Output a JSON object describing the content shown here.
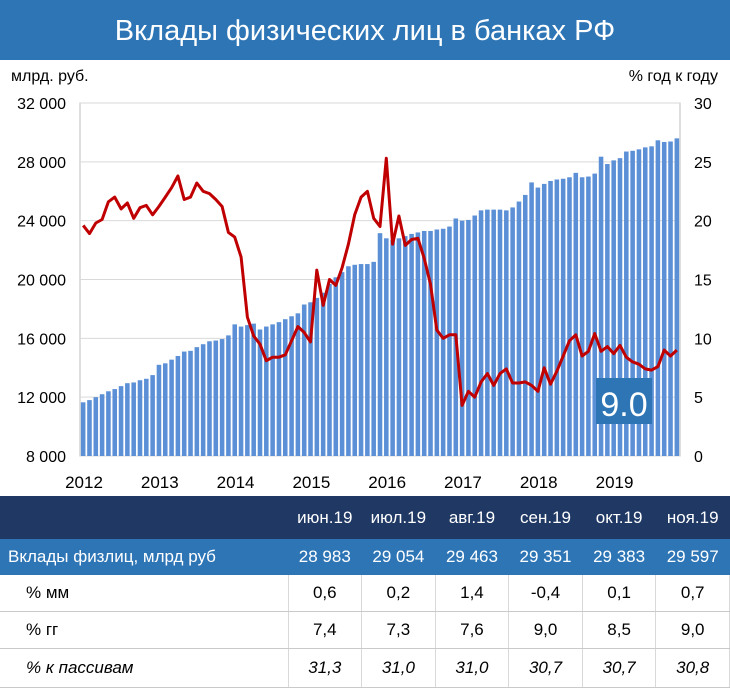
{
  "title": "Вклады физических лиц в банках РФ",
  "chart_data": {
    "type": "bar+line",
    "left_axis": {
      "label": "млрд. руб.",
      "min": 8000,
      "max": 32000,
      "ticks": [
        "8 000",
        "12 000",
        "16 000",
        "20 000",
        "24 000",
        "28 000",
        "32 000"
      ]
    },
    "right_axis": {
      "label": "% год к году",
      "min": 0,
      "max": 30,
      "ticks": [
        "0",
        "5",
        "10",
        "15",
        "20",
        "25",
        "30"
      ]
    },
    "x_ticks": [
      "2012",
      "2013",
      "2014",
      "2015",
      "2016",
      "2017",
      "2018",
      "2019"
    ],
    "x_start": "2012-01",
    "series": [
      {
        "kind": "bar",
        "color": "#5b8fd6",
        "values": [
          11650,
          11800,
          12000,
          12200,
          12400,
          12550,
          12750,
          12950,
          13000,
          13150,
          13250,
          13500,
          14200,
          14300,
          14550,
          14800,
          15100,
          15150,
          15400,
          15600,
          15800,
          15850,
          15950,
          16200,
          16950,
          16800,
          16900,
          17000,
          16600,
          16800,
          16950,
          17100,
          17300,
          17500,
          17700,
          18300,
          18450,
          18750,
          19100,
          19700,
          20150,
          20500,
          20900,
          21000,
          21050,
          21050,
          21200,
          23150,
          22800,
          22700,
          22800,
          22950,
          23100,
          23200,
          23300,
          23300,
          23400,
          23450,
          23600,
          24150,
          24000,
          24050,
          24350,
          24700,
          24750,
          24750,
          24750,
          24700,
          24900,
          25300,
          25750,
          26600,
          26250,
          26500,
          26700,
          26800,
          26850,
          26950,
          27250,
          26950,
          27000,
          27200,
          28350,
          27850,
          28100,
          28250,
          28700,
          28750,
          28850,
          28983,
          29054,
          29463,
          29351,
          29383,
          29597
        ]
      },
      {
        "kind": "line",
        "color": "#c00000",
        "values": [
          19.6,
          18.9,
          19.8,
          20.1,
          21.6,
          22.0,
          21.0,
          21.5,
          20.2,
          21.1,
          21.3,
          20.5,
          21.2,
          22.0,
          22.8,
          23.8,
          21.8,
          22.0,
          23.2,
          22.5,
          22.3,
          21.8,
          21.2,
          19.0,
          18.6,
          16.9,
          11.8,
          10.2,
          9.5,
          8.1,
          8.4,
          8.4,
          8.6,
          9.8,
          11.0,
          10.5,
          9.7,
          15.8,
          12.8,
          15.0,
          14.5,
          16.0,
          18.0,
          20.5,
          22.0,
          22.5,
          20.2,
          19.5,
          25.3,
          18.0,
          20.4,
          17.9,
          18.4,
          18.5,
          16.8,
          14.6,
          10.7,
          10.0,
          10.3,
          10.3,
          4.3,
          5.5,
          5.0,
          6.3,
          7.0,
          6.0,
          7.0,
          7.4,
          6.2,
          6.2,
          6.3,
          6.0,
          5.5,
          7.5,
          6.1,
          7.2,
          8.5,
          9.8,
          10.3,
          8.5,
          8.9,
          10.4,
          8.9,
          9.3,
          8.7,
          9.4,
          8.4,
          8.0,
          7.8,
          7.4,
          7.3,
          7.6,
          9.0,
          8.5,
          9.0
        ]
      }
    ],
    "annotation": "9.0"
  },
  "table": {
    "columns": [
      "июн.19",
      "июл.19",
      "авг.19",
      "сен.19",
      "окт.19",
      "ноя.19"
    ],
    "rows": [
      {
        "label": "Вклады физлиц, млрд руб",
        "values": [
          "28 983",
          "29 054",
          "29 463",
          "29 351",
          "29 383",
          "29 597"
        ]
      },
      {
        "label": "% мм",
        "values": [
          "0,6",
          "0,2",
          "1,4",
          "-0,4",
          "0,1",
          "0,7"
        ]
      },
      {
        "label": "% гг",
        "values": [
          "7,4",
          "7,3",
          "7,6",
          "9,0",
          "8,5",
          "9,0"
        ]
      },
      {
        "label": "% к пассивам",
        "values": [
          "31,3",
          "31,0",
          "31,0",
          "30,7",
          "30,7",
          "30,8"
        ]
      }
    ]
  }
}
